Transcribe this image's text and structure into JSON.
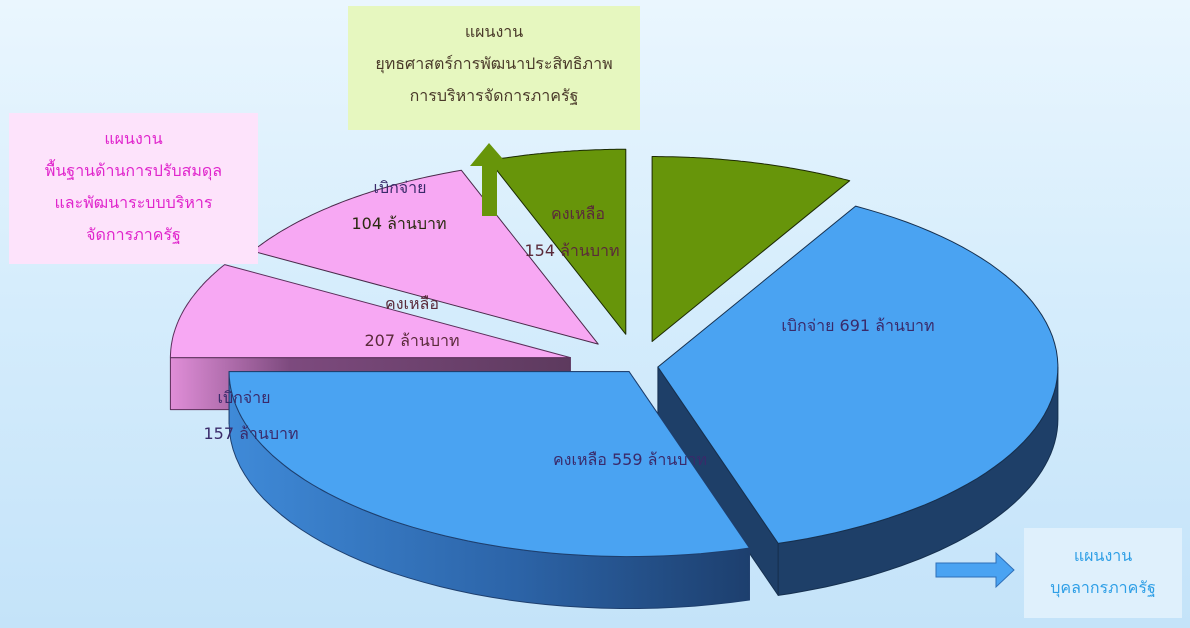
{
  "chart_data": {
    "type": "pie",
    "title": "",
    "groups": [
      {
        "name_lines": [
          "แผนงาน",
          "บุคลากรภาครัฐ"
        ],
        "color": "#4aa3f2",
        "slices": [
          {
            "label": "เบิกจ่าย",
            "value": 691,
            "unit": "ล้านบาท",
            "text": "เบิกจ่าย  691  ล้านบาท"
          },
          {
            "label": "คงเหลือ",
            "value": 559,
            "unit": "ล้านบาท",
            "text": "คงเหลือ  559  ล้านบาท"
          }
        ]
      },
      {
        "name_lines": [
          "แผนงาน",
          "พื้นฐานด้านการปรับสมดุล",
          "และพัฒนาระบบบริหาร",
          "จัดการภาครัฐ"
        ],
        "color": "#f7a8f3",
        "slices": [
          {
            "label": "เบิกจ่าย",
            "value": 157,
            "unit": "ล้านบาท",
            "line1": "เบิกจ่าย",
            "line2": "157  ล้านบาท"
          },
          {
            "label": "คงเหลือ",
            "value": 207,
            "unit": "ล้านบาท",
            "line1": "คงเหลือ",
            "line2": "207  ล้านบาท"
          }
        ]
      },
      {
        "name_lines": [
          "แผนงาน",
          "ยุทธศาสตร์การพัฒนาประสิทธิภาพ",
          "การบริหารจัดการภาครัฐ"
        ],
        "color": "#67950a",
        "slices": [
          {
            "label": "เบิกจ่าย",
            "value": 104,
            "unit": "ล้านบาท",
            "line1": "เบิกจ่าย",
            "line2": "104  ล้านบาท"
          },
          {
            "label": "คงเหลือ",
            "value": 154,
            "unit": "ล้านบาท",
            "line1": "คงเหลือ",
            "line2": "154  ล้านบาท"
          }
        ]
      }
    ]
  }
}
